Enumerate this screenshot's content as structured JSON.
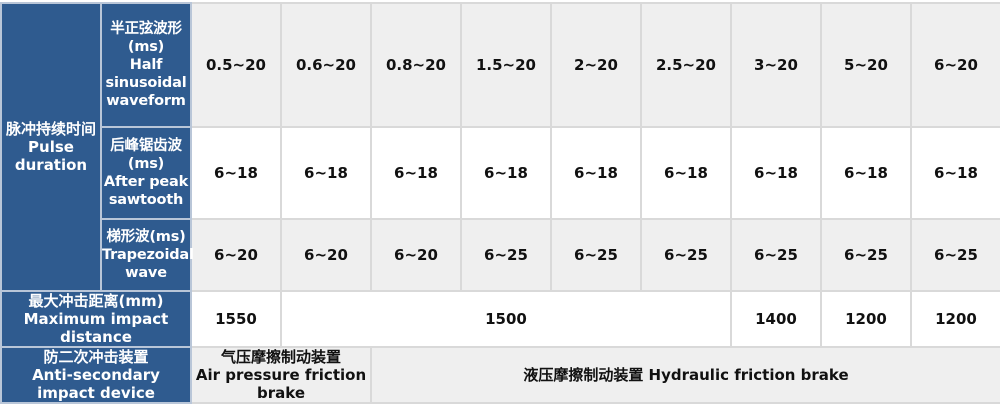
{
  "pulse_duration": {
    "label_cn": "脉冲持续时间",
    "label_en": "Pulse duration",
    "rows": [
      {
        "label_cn": "半正弦波形(ms)",
        "label_en": "Half sinusoidal waveform",
        "values": [
          "0.5~20",
          "0.6~20",
          "0.8~20",
          "1.5~20",
          "2~20",
          "2.5~20",
          "3~20",
          "5~20",
          "6~20"
        ]
      },
      {
        "label_cn": "后峰锯齿波(ms)",
        "label_en": "After peak sawtooth",
        "values": [
          "6~18",
          "6~18",
          "6~18",
          "6~18",
          "6~18",
          "6~18",
          "6~18",
          "6~18",
          "6~18"
        ]
      },
      {
        "label_cn": "梯形波(ms)",
        "label_en": "Trapezoidal wave",
        "values": [
          "6~20",
          "6~20",
          "6~20",
          "6~25",
          "6~25",
          "6~25",
          "6~25",
          "6~25",
          "6~25"
        ]
      }
    ]
  },
  "max_impact_distance": {
    "label_cn": "最大冲击距离(mm)",
    "label_en": "Maximum impact distance",
    "values": [
      "1550",
      "1500",
      "1400",
      "1200",
      "1200"
    ]
  },
  "anti_secondary": {
    "label_cn": "防二次冲击装置",
    "label_en": "Anti-secondary impact device",
    "air_cn": "气压摩擦制动装置",
    "air_en": "Air pressure friction brake",
    "hydraulic": "液压摩擦制动装置 Hydraulic friction brake"
  },
  "colors": {
    "header_bg": "#2f5b8f",
    "row_alt": "#efefef"
  }
}
